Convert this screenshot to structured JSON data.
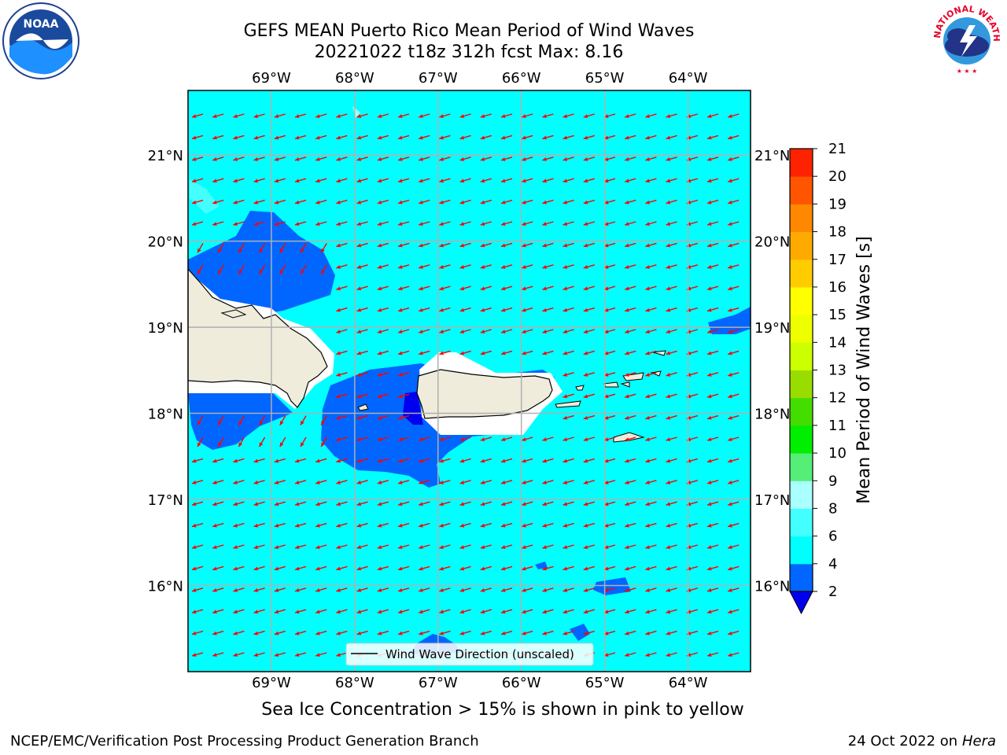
{
  "header": {
    "title_line1": "GEFS MEAN Puerto Rico Mean Period of Wind Waves",
    "title_line2": "20221022 t18z 312h fcst   Max: 8.16"
  },
  "logos": {
    "left": {
      "icon": "noaa-logo-icon",
      "text": "NOAA"
    },
    "right": {
      "icon": "nws-logo-icon",
      "text": "NATIONAL WEATHER SERVICE"
    }
  },
  "map": {
    "lon_labels": [
      "69°W",
      "68°W",
      "67°W",
      "66°W",
      "65°W",
      "64°W"
    ],
    "lat_labels": [
      "21°N",
      "20°N",
      "19°N",
      "18°N",
      "17°N",
      "16°N"
    ],
    "lon_range": [
      -70,
      -63.25
    ],
    "lat_range": [
      15,
      21.75
    ],
    "land_color": "#efecdc",
    "ocean_color": "#00ffff",
    "arrow_color": "#ff0000",
    "legend_label": "Wind Wave Direction (unscaled)",
    "arrow_direction": "towards west-southwest"
  },
  "colorbar": {
    "label": "Mean Period of Wind Waves [s]",
    "ticks": [
      "2",
      "4",
      "6",
      "8",
      "9",
      "10",
      "11",
      "12",
      "13",
      "14",
      "15",
      "16",
      "17",
      "18",
      "19",
      "20",
      "21"
    ],
    "colors": [
      "#0066ff",
      "#00ffff",
      "#44ffff",
      "#aaffff",
      "#55ee77",
      "#00ee00",
      "#44dd00",
      "#99dd00",
      "#ccff00",
      "#eeff00",
      "#ffff00",
      "#ffcc00",
      "#ffaa00",
      "#ff8800",
      "#ff5500",
      "#ff2200"
    ],
    "under_color": "#0000ee"
  },
  "notes": {
    "ice": "Sea Ice Concentration > 15% is shown in pink to yellow"
  },
  "footer": {
    "left": "NCEP/EMC/Verification Post Processing Product Generation Branch",
    "date": "24 Oct 2022 on ",
    "host": "Hera"
  }
}
